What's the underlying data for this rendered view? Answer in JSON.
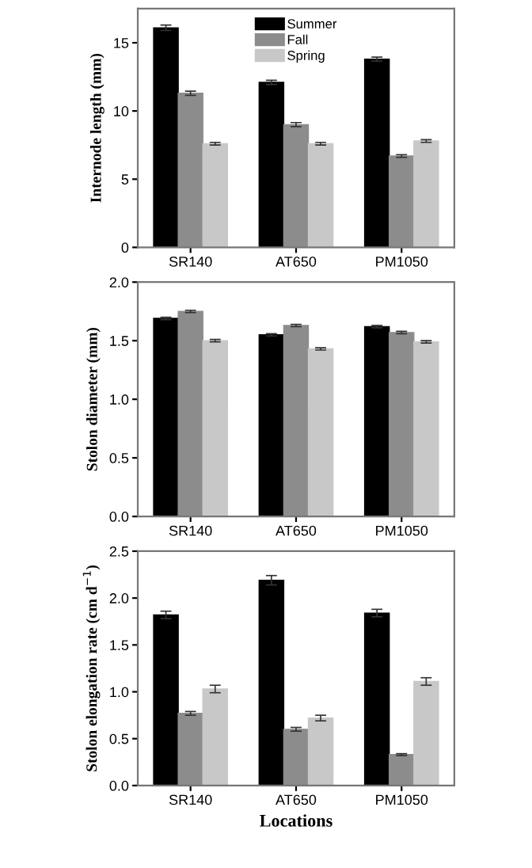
{
  "chart_data": [
    {
      "type": "bar",
      "ylabel": "Internode length (mm)",
      "categories": [
        "SR140",
        "AT650",
        "PM1050"
      ],
      "ylim": [
        0,
        17.5
      ],
      "yticks": [
        0,
        5,
        10,
        15
      ],
      "legend": "top",
      "grid": false,
      "series": [
        {
          "name": "Summer",
          "color": "#000000",
          "values": [
            16.1,
            12.1,
            13.8
          ],
          "errors": [
            0.2,
            0.15,
            0.15
          ]
        },
        {
          "name": "Fall",
          "color": "#8c8c8c",
          "values": [
            11.3,
            9.0,
            6.7
          ],
          "errors": [
            0.15,
            0.15,
            0.1
          ]
        },
        {
          "name": "Spring",
          "color": "#c8c8c8",
          "values": [
            7.6,
            7.6,
            7.8
          ],
          "errors": [
            0.1,
            0.1,
            0.1
          ]
        }
      ]
    },
    {
      "type": "bar",
      "ylabel": "Stolon diameter (mm)",
      "categories": [
        "SR140",
        "AT650",
        "PM1050"
      ],
      "ylim": [
        0,
        2.0
      ],
      "yticks": [
        {
          "value": 0,
          "label": "0.0"
        },
        {
          "value": 0.5,
          "label": "0.5"
        },
        {
          "value": 1,
          "label": "1.0"
        },
        {
          "value": 1.5,
          "label": "1.5"
        },
        {
          "value": 2,
          "label": "2.0"
        }
      ],
      "grid": false,
      "series": [
        {
          "color": "#000000",
          "values": [
            1.69,
            1.55,
            1.62
          ],
          "errors": [
            0.01,
            0.01,
            0.01
          ]
        },
        {
          "color": "#8c8c8c",
          "values": [
            1.75,
            1.63,
            1.57
          ],
          "errors": [
            0.01,
            0.01,
            0.01
          ]
        },
        {
          "color": "#c8c8c8",
          "values": [
            1.5,
            1.43,
            1.49
          ],
          "errors": [
            0.01,
            0.01,
            0.01
          ]
        }
      ]
    },
    {
      "type": "bar",
      "ylabel": "Stolon elongation rate (cm d$^{−1}$)",
      "xlabel": "Locations",
      "categories": [
        "SR140",
        "AT650",
        "PM1050"
      ],
      "ylim": [
        0,
        2.5
      ],
      "yticks": [
        {
          "value": 0,
          "label": "0.0"
        },
        {
          "value": 0.5,
          "label": "0.5"
        },
        {
          "value": 1,
          "label": "1.0"
        },
        {
          "value": 1.5,
          "label": "1.5"
        },
        {
          "value": 2,
          "label": "2.0"
        },
        {
          "value": 2.5,
          "label": "2.5"
        }
      ],
      "grid": false,
      "series": [
        {
          "color": "#000000",
          "values": [
            1.82,
            2.19,
            1.84
          ],
          "errors": [
            0.04,
            0.05,
            0.04
          ]
        },
        {
          "color": "#8c8c8c",
          "values": [
            0.77,
            0.6,
            0.33
          ],
          "errors": [
            0.02,
            0.02,
            0.01
          ]
        },
        {
          "color": "#c8c8c8",
          "values": [
            1.03,
            0.72,
            1.11
          ],
          "errors": [
            0.04,
            0.03,
            0.04
          ]
        }
      ]
    }
  ]
}
